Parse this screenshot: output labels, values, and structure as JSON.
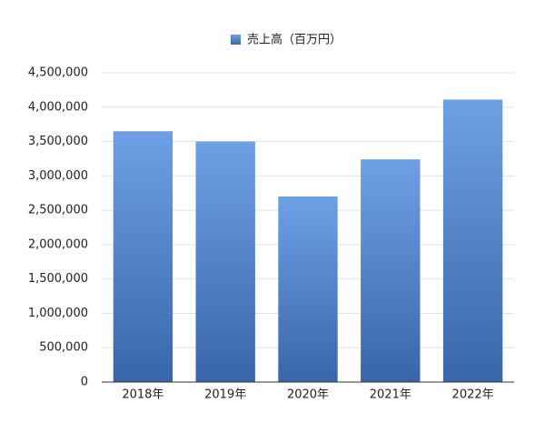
{
  "chart_data": {
    "type": "bar",
    "categories": [
      "2018年",
      "2019年",
      "2020年",
      "2021年",
      "2022年"
    ],
    "series": [
      {
        "name": "売上高（百万円）",
        "color": "#4a88e0",
        "values": [
          3650000,
          3500000,
          2700000,
          3240000,
          4110000
        ]
      }
    ],
    "ylim": [
      0,
      4500000
    ],
    "yticks": [
      0,
      {
        "value": 500000,
        "label": "500,000"
      },
      {
        "value": 1000000,
        "label": "1,000,000"
      },
      {
        "value": 1500000,
        "label": "1,500,000"
      },
      {
        "value": 2000000,
        "label": "2,000,000"
      },
      {
        "value": 2500000,
        "label": "2,500,000"
      },
      {
        "value": 3000000,
        "label": "3,000,000"
      },
      {
        "value": 3500000,
        "label": "3,500,000"
      },
      {
        "value": 4000000,
        "label": "4,000,000"
      },
      {
        "value": 4500000,
        "label": "4,500,000"
      }
    ],
    "grid": true,
    "legend": "top"
  }
}
